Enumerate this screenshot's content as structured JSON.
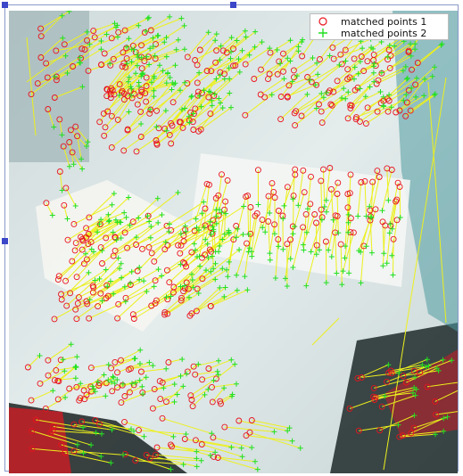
{
  "figure": {
    "selection_handles": true
  },
  "legend": {
    "placement": "upper-right",
    "entries": [
      {
        "label": "matched points 1",
        "marker": "circle-open",
        "color": "#e8141e"
      },
      {
        "label": "matched points 2",
        "marker": "plus",
        "color": "#22e022"
      }
    ]
  },
  "colors": {
    "match_line": "#ecf01c",
    "point1": "#e8141e",
    "point2": "#22e022",
    "background_photo": "#e2eaea",
    "frame": "#8a9ac8",
    "handle": "#3b46c8"
  },
  "icons": {
    "legend_marker_1": "red-circle-marker",
    "legend_marker_2": "green-plus-marker"
  }
}
